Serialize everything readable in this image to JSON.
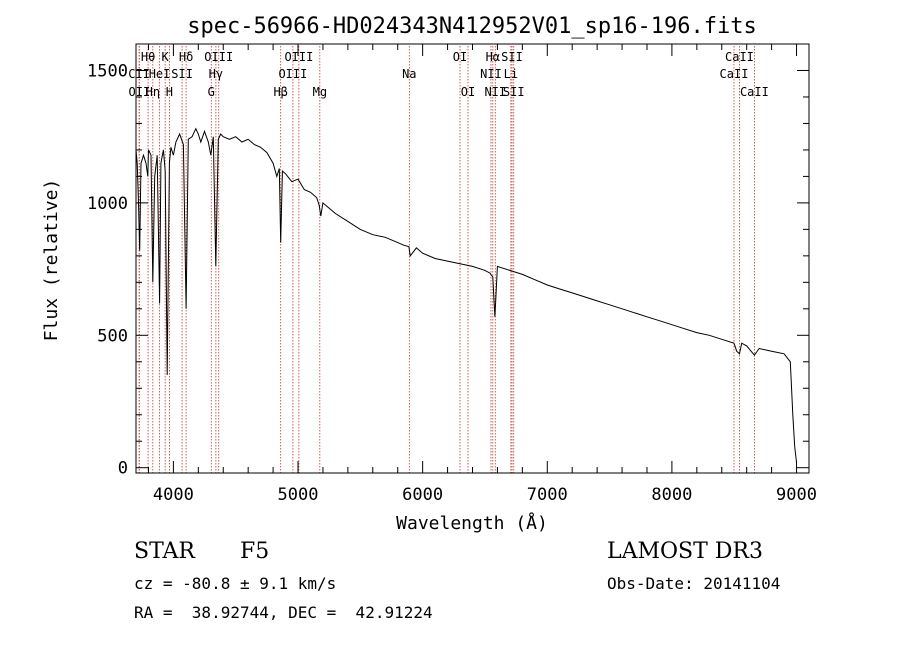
{
  "chart_data": {
    "type": "line",
    "title": "spec-56966-HD024343N412952V01_sp16-196.fits",
    "xlabel": "Wavelength (Å)",
    "ylabel": "Flux (relative)",
    "xlim": [
      3700,
      9100
    ],
    "ylim": [
      -20,
      1600
    ],
    "xticks": [
      4000,
      5000,
      6000,
      7000,
      8000,
      9000
    ],
    "yticks": [
      0,
      500,
      1000,
      1500
    ],
    "series": [
      {
        "name": "spectrum",
        "x": [
          3700,
          3710,
          3720,
          3730,
          3740,
          3760,
          3780,
          3795,
          3800,
          3820,
          3835,
          3850,
          3870,
          3889,
          3900,
          3920,
          3934,
          3950,
          3968,
          3980,
          4000,
          4020,
          4050,
          4080,
          4102,
          4120,
          4150,
          4180,
          4200,
          4220,
          4250,
          4280,
          4300,
          4320,
          4340,
          4360,
          4380,
          4400,
          4450,
          4500,
          4550,
          4600,
          4650,
          4700,
          4750,
          4800,
          4830,
          4850,
          4861,
          4875,
          4900,
          4950,
          5000,
          5050,
          5100,
          5150,
          5170,
          5183,
          5200,
          5250,
          5300,
          5400,
          5500,
          5600,
          5700,
          5800,
          5850,
          5890,
          5900,
          5950,
          6000,
          6100,
          6200,
          6300,
          6400,
          6500,
          6540,
          6563,
          6580,
          6600,
          6700,
          6800,
          6900,
          7000,
          7100,
          7200,
          7300,
          7400,
          7500,
          7600,
          7700,
          7800,
          7900,
          8000,
          8100,
          8200,
          8300,
          8400,
          8498,
          8520,
          8542,
          8560,
          8600,
          8662,
          8700,
          8800,
          8900,
          8950,
          8970,
          8985,
          9000
        ],
        "values": [
          1200,
          1150,
          1000,
          820,
          1150,
          1180,
          1150,
          1100,
          1200,
          1180,
          700,
          1100,
          1180,
          620,
          1150,
          1200,
          1120,
          350,
          1150,
          1210,
          1180,
          1230,
          1260,
          1220,
          600,
          1240,
          1250,
          1280,
          1260,
          1230,
          1270,
          1230,
          1180,
          1250,
          760,
          1240,
          1260,
          1250,
          1240,
          1250,
          1230,
          1240,
          1220,
          1210,
          1190,
          1150,
          1100,
          1130,
          850,
          1120,
          1110,
          1080,
          1090,
          1050,
          1040,
          1020,
          990,
          950,
          1000,
          980,
          960,
          930,
          900,
          880,
          870,
          850,
          840,
          835,
          800,
          830,
          810,
          790,
          780,
          770,
          760,
          745,
          735,
          720,
          570,
          760,
          745,
          730,
          710,
          690,
          675,
          660,
          645,
          630,
          615,
          600,
          585,
          570,
          555,
          540,
          525,
          510,
          500,
          485,
          470,
          440,
          430,
          470,
          460,
          425,
          450,
          440,
          430,
          400,
          200,
          80,
          20
        ]
      }
    ],
    "line_annotations": {
      "lines": [
        {
          "label": "OII",
          "x": 3727,
          "row": 2
        },
        {
          "label": "Hθ",
          "x": 3797,
          "row": 0
        },
        {
          "label": "Hη",
          "x": 3835,
          "row": 2
        },
        {
          "label": "CII",
          "x": 3725,
          "row": 1
        },
        {
          "label": "K",
          "x": 3934,
          "row": 0
        },
        {
          "label": "HeI",
          "x": 3889,
          "row": 1
        },
        {
          "label": "H",
          "x": 3968,
          "row": 2
        },
        {
          "label": "SII",
          "x": 4070,
          "row": 1
        },
        {
          "label": "Hδ",
          "x": 4102,
          "row": 0
        },
        {
          "label": "OIII",
          "x": 4364,
          "row": 0
        },
        {
          "label": "Hγ",
          "x": 4341,
          "row": 1
        },
        {
          "label": "G",
          "x": 4304,
          "row": 2
        },
        {
          "label": "Hβ",
          "x": 4861,
          "row": 2
        },
        {
          "label": "OIII",
          "x": 5007,
          "row": 0
        },
        {
          "label": "OIII",
          "x": 4959,
          "row": 1
        },
        {
          "label": "Mg",
          "x": 5175,
          "row": 2
        },
        {
          "label": "Na",
          "x": 5893,
          "row": 1
        },
        {
          "label": "OI",
          "x": 6300,
          "row": 0
        },
        {
          "label": "OI",
          "x": 6364,
          "row": 2
        },
        {
          "label": "Hα",
          "x": 6563,
          "row": 0
        },
        {
          "label": "NII",
          "x": 6548,
          "row": 1
        },
        {
          "label": "NII",
          "x": 6583,
          "row": 2
        },
        {
          "label": "SII",
          "x": 6717,
          "row": 0
        },
        {
          "label": "Li",
          "x": 6708,
          "row": 1
        },
        {
          "label": "SII",
          "x": 6731,
          "row": 2
        },
        {
          "label": "CaII",
          "x": 8542,
          "row": 0
        },
        {
          "label": "CaII",
          "x": 8498,
          "row": 1
        },
        {
          "label": "CaII",
          "x": 8662,
          "row": 2
        }
      ]
    }
  },
  "info": {
    "object_class": "STAR",
    "subclass": "F5",
    "survey": "LAMOST DR3",
    "redshift": "cz = -80.8 ± 9.1 km/s",
    "obs_date": "Obs-Date: 20141104",
    "coords": "RA =  38.92744, DEC =  42.91224"
  }
}
